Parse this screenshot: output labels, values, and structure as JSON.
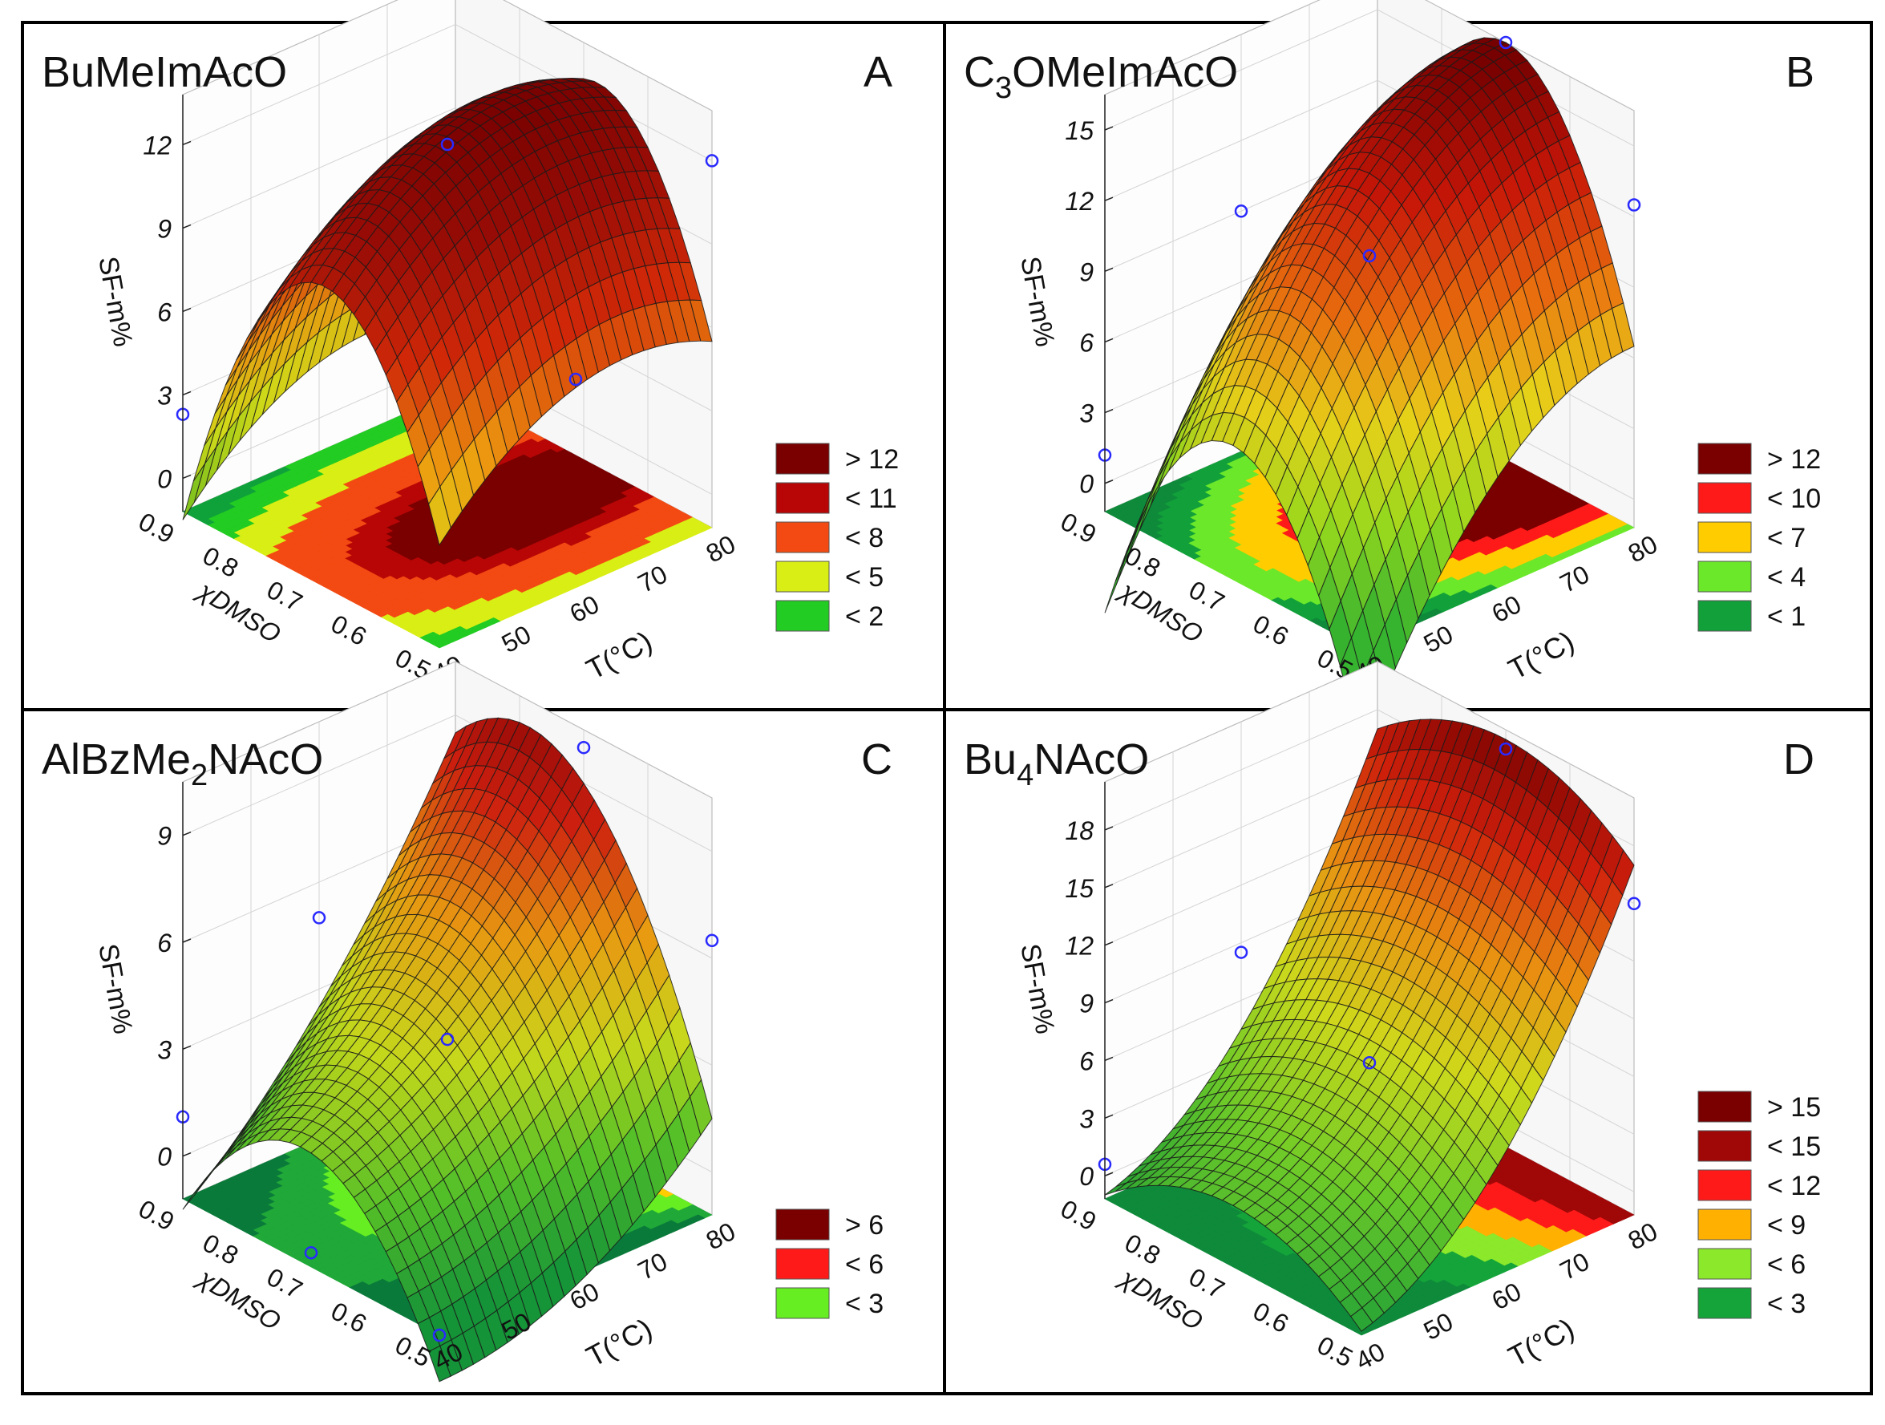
{
  "figure": {
    "panel_count": 4
  },
  "chart_data": [
    {
      "id": "A",
      "type": "surface3d",
      "title": "BuMeImAcO",
      "title_parts": [
        {
          "t": "BuMeImAcO",
          "sub": false
        }
      ],
      "panel_letter": "A",
      "xlabel": "T(°C)",
      "ylabel": "χDMSO",
      "zlabel": "SF-m%",
      "x_ticks": [
        "40",
        "50",
        "60",
        "70",
        "80"
      ],
      "y_ticks": [
        "0.5",
        "0.6",
        "0.7",
        "0.8",
        "0.9"
      ],
      "z_ticks": [
        "0",
        "3",
        "6",
        "9",
        "12"
      ],
      "xlim": [
        40,
        80
      ],
      "ylim": [
        0.5,
        0.9
      ],
      "zlim": [
        -1.2,
        13.8
      ],
      "surface_model": {
        "c0": 13.0,
        "cx": 1.5,
        "cxx": -2.0,
        "cy": -2.0,
        "cyy": -9.0,
        "cxy": 0.0
      },
      "observed_points": [
        {
          "x": 40,
          "y": 0.9,
          "z": 2.3
        },
        {
          "x": 60,
          "y": 0.7,
          "z": 12.3
        },
        {
          "x": 60,
          "y": 0.5,
          "z": 6.3
        },
        {
          "x": 80,
          "y": 0.9,
          "z": 13.6
        },
        {
          "x": 80,
          "y": 0.5,
          "z": 12.0
        }
      ],
      "legend": {
        "labels": [
          "> 12",
          "< 11",
          "< 8",
          "< 5",
          "< 2"
        ],
        "colors": [
          "#7a0000",
          "#b80606",
          "#f24a12",
          "#d9ee14",
          "#22cc22"
        ]
      },
      "contour_levels": [
        2,
        5,
        8,
        11,
        12
      ],
      "contour_colors": [
        "#10a23a",
        "#22cc22",
        "#d9ee14",
        "#f24a12",
        "#b80606",
        "#7a0000"
      ],
      "surface_colors": [
        "#74c820",
        "#dfe81a",
        "#f6a110",
        "#d92a08",
        "#a00d06",
        "#7a0000"
      ],
      "grid": true,
      "legend_position": "right"
    },
    {
      "id": "B",
      "type": "surface3d",
      "title": "C3OMeImAcO",
      "title_parts": [
        {
          "t": "C",
          "sub": false
        },
        {
          "t": "3",
          "sub": true
        },
        {
          "t": "OMeImAcO",
          "sub": false
        }
      ],
      "panel_letter": "B",
      "xlabel": "T(°C)",
      "ylabel": "χDMSO",
      "zlabel": "SF-m%",
      "x_ticks": [
        "40",
        "50",
        "60",
        "70",
        "80"
      ],
      "y_ticks": [
        "0.5",
        "0.6",
        "0.7",
        "0.8",
        "0.9"
      ],
      "z_ticks": [
        "0",
        "3",
        "6",
        "9",
        "12",
        "15"
      ],
      "xlim": [
        40,
        80
      ],
      "ylim": [
        0.5,
        0.9
      ],
      "zlim": [
        -1.2,
        16.5
      ],
      "surface_model": {
        "c0": 13.5,
        "cx": 6.0,
        "cxx": -3.0,
        "cy": 0.0,
        "cyy": -10.0,
        "cxy": 0.0
      },
      "observed_points": [
        {
          "x": 40,
          "y": 0.9,
          "z": 1.2
        },
        {
          "x": 60,
          "y": 0.9,
          "z": 9.0
        },
        {
          "x": 60,
          "y": 0.7,
          "z": 10.0
        },
        {
          "x": 80,
          "y": 0.7,
          "z": 16.5
        },
        {
          "x": 80,
          "y": 0.5,
          "z": 12.5
        }
      ],
      "legend": {
        "labels": [
          "> 12",
          "< 10",
          "< 7",
          "< 4",
          "< 1"
        ],
        "colors": [
          "#7a0000",
          "#ff1a1a",
          "#ffcc00",
          "#6be82a",
          "#12a03a"
        ]
      },
      "contour_levels": [
        1,
        4,
        7,
        10,
        12
      ],
      "contour_colors": [
        "#0e8a3a",
        "#12a03a",
        "#6be82a",
        "#ffcc00",
        "#ff1a1a",
        "#7a0000"
      ],
      "surface_colors": [
        "#38b830",
        "#9ce01e",
        "#f0d81a",
        "#f2700f",
        "#d01808",
        "#7a0000"
      ],
      "grid": true,
      "legend_position": "right"
    },
    {
      "id": "C",
      "type": "surface3d",
      "title": "AlBzMe2NAcO",
      "title_parts": [
        {
          "t": "AlBzMe",
          "sub": false
        },
        {
          "t": "2",
          "sub": true
        },
        {
          "t": "NAcO",
          "sub": false
        }
      ],
      "panel_letter": "C",
      "xlabel": "T(°C)",
      "ylabel": "χDMSO",
      "zlabel": "SF-m%",
      "x_ticks": [
        "40",
        "50",
        "60",
        "70",
        "80"
      ],
      "y_ticks": [
        "0.5",
        "0.6",
        "0.7",
        "0.8",
        "0.9"
      ],
      "z_ticks": [
        "0",
        "3",
        "6",
        "9"
      ],
      "xlim": [
        40,
        80
      ],
      "ylim": [
        0.5,
        0.9
      ],
      "zlim": [
        -1.2,
        10.5
      ],
      "surface_model": {
        "c0": 4.5,
        "cx": 3.5,
        "cxx": 1.0,
        "cy": 2.0,
        "cyy": -4.0,
        "cxy": 1.5
      },
      "observed_points": [
        {
          "x": 40,
          "y": 0.9,
          "z": 1.1
        },
        {
          "x": 40,
          "y": 0.7,
          "z": -0.8
        },
        {
          "x": 40,
          "y": 0.5,
          "z": -1.2
        },
        {
          "x": 60,
          "y": 0.9,
          "z": 5.0
        },
        {
          "x": 60,
          "y": 0.7,
          "z": 3.5
        },
        {
          "x": 80,
          "y": 0.7,
          "z": 10.0
        },
        {
          "x": 80,
          "y": 0.5,
          "z": 6.5
        }
      ],
      "legend": {
        "labels": [
          "> 6",
          "< 6",
          "< 3"
        ],
        "colors": [
          "#7a0000",
          "#ff1a1a",
          "#66ee22"
        ]
      },
      "contour_levels": [
        1.5,
        3,
        4.5,
        6
      ],
      "contour_colors": [
        "#0a7a3a",
        "#20a838",
        "#66ee22",
        "#ffcc00",
        "#ff1a1a"
      ],
      "surface_colors": [
        "#169a3a",
        "#58c82a",
        "#cfe21c",
        "#f3a012",
        "#d62010",
        "#8a0404"
      ],
      "grid": true,
      "legend_position": "right"
    },
    {
      "id": "D",
      "type": "surface3d",
      "title": "Bu4NAcO",
      "title_parts": [
        {
          "t": "Bu",
          "sub": false
        },
        {
          "t": "4",
          "sub": true
        },
        {
          "t": "NAcO",
          "sub": false
        }
      ],
      "panel_letter": "D",
      "xlabel": "T(°C)",
      "ylabel": "χDMSO",
      "zlabel": "SF-m%",
      "x_ticks": [
        "40",
        "50",
        "60",
        "70",
        "80"
      ],
      "y_ticks": [
        "0.5",
        "0.6",
        "0.7",
        "0.8",
        "0.9"
      ],
      "z_ticks": [
        "0",
        "3",
        "6",
        "9",
        "12",
        "15",
        "18"
      ],
      "xlim": [
        40,
        80
      ],
      "ylim": [
        0.5,
        0.9
      ],
      "zlim": [
        -1.2,
        20.5
      ],
      "surface_model": {
        "c0": 7.5,
        "cx": 9.0,
        "cxx": 3.5,
        "cy": 0.0,
        "cyy": -3.0,
        "cxy": 0.0
      },
      "observed_points": [
        {
          "x": 40,
          "y": 0.9,
          "z": 0.6
        },
        {
          "x": 60,
          "y": 0.9,
          "z": 8.5
        },
        {
          "x": 60,
          "y": 0.7,
          "z": 6.3
        },
        {
          "x": 80,
          "y": 0.7,
          "z": 19.5
        },
        {
          "x": 80,
          "y": 0.5,
          "z": 15.0
        }
      ],
      "legend": {
        "labels": [
          "> 15",
          "< 15",
          "< 12",
          "< 9",
          "< 6",
          "< 3"
        ],
        "colors": [
          "#7a0000",
          "#a00808",
          "#ff1a1a",
          "#ffb000",
          "#8be82a",
          "#14a43a"
        ]
      },
      "contour_levels": [
        3,
        6,
        9,
        12,
        15
      ],
      "contour_colors": [
        "#0e8a3a",
        "#14a43a",
        "#8be82a",
        "#ffb000",
        "#ff1a1a",
        "#a00808"
      ],
      "surface_colors": [
        "#23a838",
        "#72d42a",
        "#d8e41c",
        "#f49612",
        "#d8200c",
        "#7a0000"
      ],
      "grid": true,
      "legend_position": "right"
    }
  ]
}
